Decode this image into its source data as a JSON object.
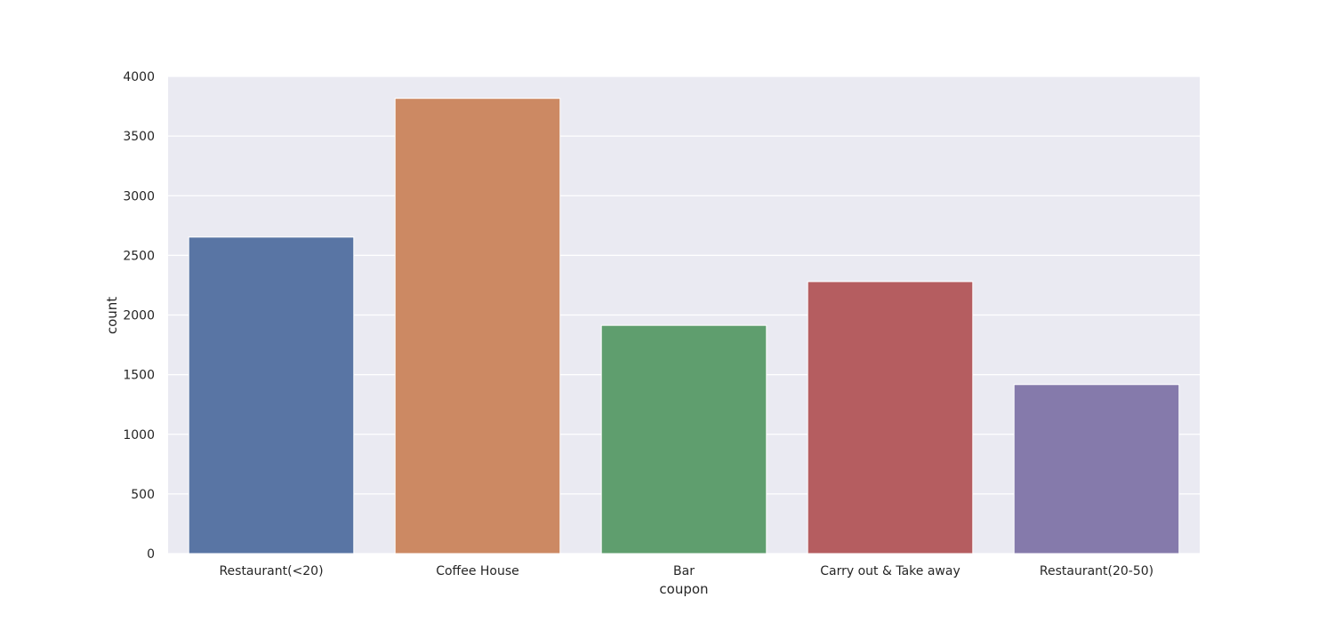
{
  "chart_data": {
    "type": "bar",
    "title": "",
    "xlabel": "coupon",
    "ylabel": "count",
    "categories": [
      "Restaurant(<20)",
      "Coffee House",
      "Bar",
      "Carry out & Take away",
      "Restaurant(20-50)"
    ],
    "values": [
      2653,
      3816,
      1913,
      2280,
      1417
    ],
    "ylim": [
      0,
      4000
    ],
    "yticks": [
      "0",
      "500",
      "1000",
      "1500",
      "2000",
      "2500",
      "3000",
      "3500",
      "4000"
    ],
    "grid": true,
    "colors": [
      "#5975a4",
      "#cc8963",
      "#5f9e6e",
      "#b55d60",
      "#857aab"
    ],
    "background": "#eaeaf2",
    "gridColor": "#ffffff"
  }
}
